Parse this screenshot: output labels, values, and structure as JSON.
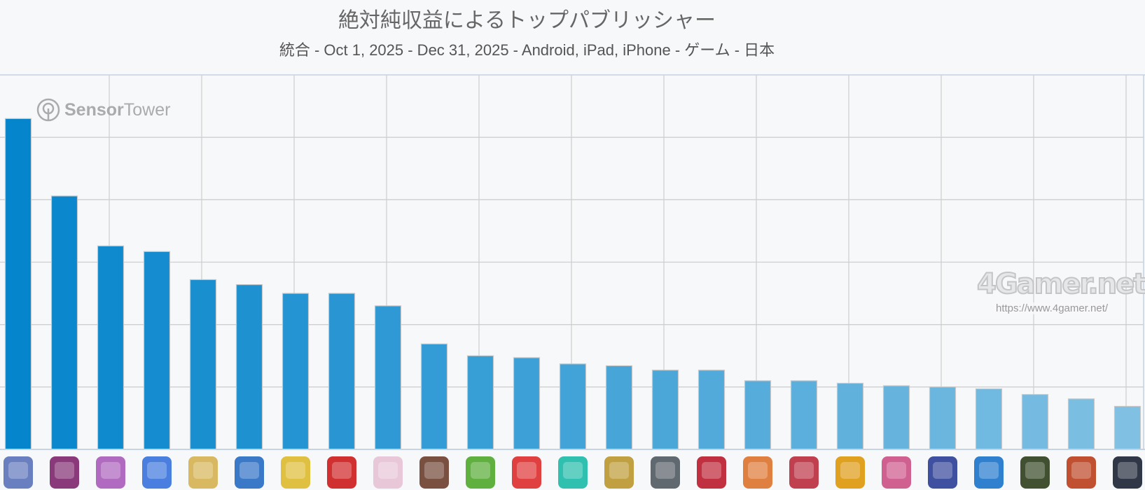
{
  "chart_data": {
    "type": "bar",
    "title": "絶対純収益によるトップパブリッシャー",
    "subtitle": "統合 - Oct 1, 2025 - Dec 31, 2025 - Android, iPad, iPhone - ゲーム - 日本",
    "xlabel": "",
    "ylabel": "",
    "ylim": [
      0,
      6
    ],
    "grid": true,
    "y_tick_labels_shown": false,
    "x_categories_shown_as": "app icons",
    "values": [
      5.3,
      4.06,
      3.26,
      3.17,
      2.72,
      2.64,
      2.5,
      2.5,
      2.3,
      1.69,
      1.5,
      1.47,
      1.37,
      1.34,
      1.27,
      1.27,
      1.1,
      1.1,
      1.06,
      1.02,
      1.0,
      0.97,
      0.88,
      0.81,
      0.69
    ],
    "bar_color_start": "#0585cc",
    "bar_color_end": "#7fc0e3",
    "icon_colors": [
      "#6a7fc0",
      "#8a3a7a",
      "#b06bc0",
      "#4a7fe0",
      "#d8b860",
      "#3a78c8",
      "#e0c040",
      "#d03030",
      "#e8c8d8",
      "#7a5040",
      "#60b040",
      "#e04040",
      "#30c0b0",
      "#c0a040",
      "#606870",
      "#c03040",
      "#e08040",
      "#c04050",
      "#e0a020",
      "#d06090",
      "#4050a0",
      "#3080d0",
      "#405030",
      "#c05030",
      "#303848"
    ]
  },
  "watermarks": {
    "sensor_tower": {
      "bold": "Sensor",
      "light": "Tower"
    },
    "fourgamer": {
      "logo": "4Gamer.net",
      "url": "https://www.4gamer.net/"
    }
  }
}
